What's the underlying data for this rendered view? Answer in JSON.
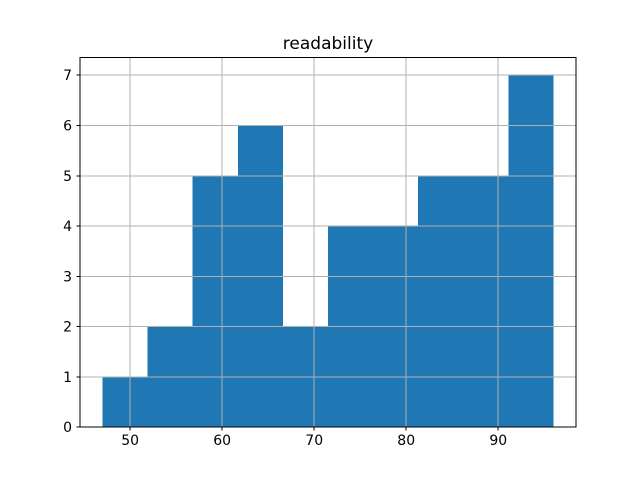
{
  "chart_data": {
    "type": "bar",
    "subtype": "histogram",
    "title": "readability",
    "bin_edges": [
      47.0,
      51.9,
      56.8,
      61.7,
      66.6,
      71.5,
      76.4,
      81.3,
      86.2,
      91.1,
      96.0
    ],
    "counts": [
      1,
      2,
      5,
      6,
      2,
      4,
      4,
      5,
      5,
      7
    ],
    "xticks": [
      50,
      60,
      70,
      80,
      90
    ],
    "yticks": [
      0,
      1,
      2,
      3,
      4,
      5,
      6,
      7
    ],
    "xlim": [
      44.55,
      98.45
    ],
    "ylim": [
      0,
      7.35
    ],
    "xlabel": "",
    "ylabel": "",
    "grid": true,
    "legend": false,
    "bar_color": "#1f77b4",
    "grid_color": "#b0b0b0",
    "spine_color": "#000000",
    "background_color": "#ffffff"
  }
}
